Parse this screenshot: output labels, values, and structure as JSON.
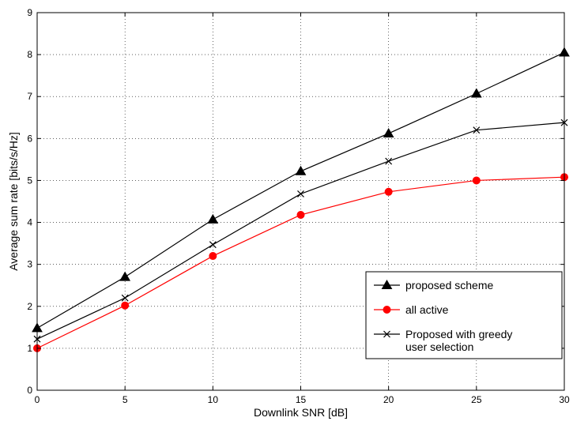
{
  "chart_data": {
    "type": "line",
    "xlabel": "Downlink SNR [dB]",
    "ylabel": "Average sum rate [bits/s/Hz]",
    "xlim": [
      0,
      30
    ],
    "ylim": [
      0,
      9
    ],
    "xticks": [
      0,
      5,
      10,
      15,
      20,
      25,
      30
    ],
    "yticks": [
      0,
      1,
      2,
      3,
      4,
      5,
      6,
      7,
      8,
      9
    ],
    "grid": true,
    "legend_position": "bottom-right",
    "x": [
      0,
      5,
      10,
      15,
      20,
      25,
      30
    ],
    "series": [
      {
        "name": "proposed scheme",
        "values": [
          1.48,
          2.7,
          4.07,
          5.22,
          6.12,
          7.07,
          8.05
        ],
        "color": "#000000",
        "marker": "triangle"
      },
      {
        "name": "all active",
        "values": [
          1.0,
          2.02,
          3.2,
          4.18,
          4.73,
          5.0,
          5.08
        ],
        "color": "#ff0000",
        "marker": "circle"
      },
      {
        "name": "Proposed with greedy user selection",
        "legend_lines": [
          "Proposed with greedy",
          "user selection"
        ],
        "values": [
          1.22,
          2.2,
          3.47,
          4.68,
          5.46,
          6.2,
          6.38
        ],
        "color": "#000000",
        "marker": "x"
      }
    ]
  }
}
